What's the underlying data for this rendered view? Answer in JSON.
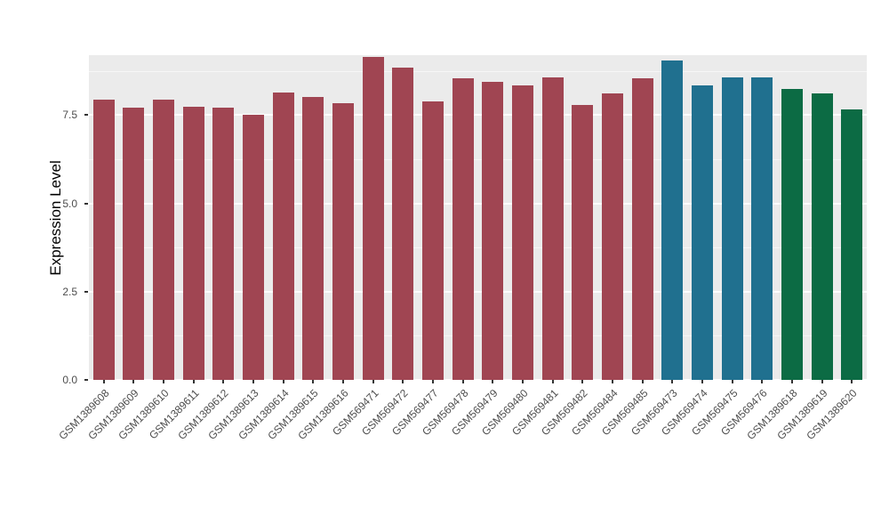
{
  "chart_data": {
    "type": "bar",
    "title": "",
    "xlabel": "",
    "ylabel": "Expression Level",
    "ylim": [
      0,
      9.2
    ],
    "yticks": [
      0.0,
      2.5,
      5.0,
      7.5
    ],
    "ytick_labels": [
      "0.0",
      "2.5",
      "5.0",
      "7.5"
    ],
    "minor_yticks": [
      1.25,
      3.75,
      6.25,
      8.75
    ],
    "grid": "major-and-minor-horizontal",
    "legend": "none",
    "categories": [
      "GSM1389608",
      "GSM1389609",
      "GSM1389610",
      "GSM1389611",
      "GSM1389612",
      "GSM1389613",
      "GSM1389614",
      "GSM1389615",
      "GSM1389616",
      "GSM569471",
      "GSM569472",
      "GSM569477",
      "GSM569478",
      "GSM569479",
      "GSM569480",
      "GSM569481",
      "GSM569482",
      "GSM569484",
      "GSM569485",
      "GSM569473",
      "GSM569474",
      "GSM569475",
      "GSM569476",
      "GSM1389618",
      "GSM1389619",
      "GSM1389620"
    ],
    "values": [
      7.95,
      7.72,
      7.95,
      7.75,
      7.72,
      7.52,
      8.15,
      8.02,
      7.85,
      9.15,
      8.85,
      7.88,
      8.55,
      8.45,
      8.35,
      8.58,
      7.78,
      8.12,
      8.55,
      9.05,
      8.35,
      8.58,
      8.58,
      8.25,
      8.12,
      7.65
    ],
    "groups": [
      "maroon",
      "maroon",
      "maroon",
      "maroon",
      "maroon",
      "maroon",
      "maroon",
      "maroon",
      "maroon",
      "maroon",
      "maroon",
      "maroon",
      "maroon",
      "maroon",
      "maroon",
      "maroon",
      "maroon",
      "maroon",
      "maroon",
      "teal",
      "teal",
      "teal",
      "teal",
      "green",
      "green",
      "green"
    ],
    "palette": {
      "maroon": "#A04552",
      "teal": "#20708F",
      "green": "#0C6B44"
    },
    "style": {
      "figure_background": "#FFFFFF",
      "panel_background": "#EBEBEB",
      "gridline_color": "#FFFFFF",
      "tick_color": "#333333",
      "tick_label_color": "#4D4D4D",
      "axis_title_color": "#000000"
    }
  }
}
